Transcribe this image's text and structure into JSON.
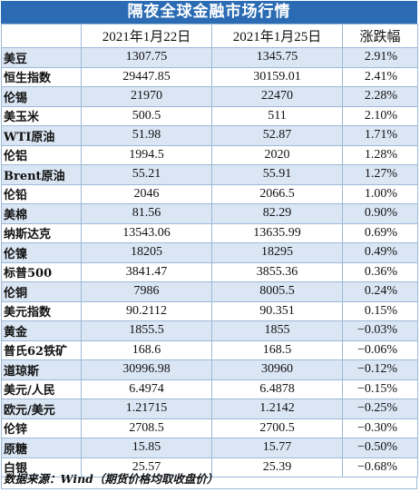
{
  "title": "隔夜全球金融市场行情",
  "headers": [
    "",
    "2021年1月22日",
    "2021年1月25日",
    "涨跌幅"
  ],
  "rows": [
    {
      "name": "美豆",
      "d1": "1307.75",
      "d2": "1345.75",
      "chg": "2.91%"
    },
    {
      "name": "恒生指数",
      "d1": "29447.85",
      "d2": "30159.01",
      "chg": "2.41%"
    },
    {
      "name": "伦锡",
      "d1": "21970",
      "d2": "22470",
      "chg": "2.28%"
    },
    {
      "name": "美玉米",
      "d1": "500.5",
      "d2": "511",
      "chg": "2.10%"
    },
    {
      "name": "WTI原油",
      "d1": "51.98",
      "d2": "52.87",
      "chg": "1.71%"
    },
    {
      "name": "伦铝",
      "d1": "1994.5",
      "d2": "2020",
      "chg": "1.28%"
    },
    {
      "name": "Brent原油",
      "d1": "55.21",
      "d2": "55.91",
      "chg": "1.27%"
    },
    {
      "name": "伦铅",
      "d1": "2046",
      "d2": "2066.5",
      "chg": "1.00%"
    },
    {
      "name": "美棉",
      "d1": "81.56",
      "d2": "82.29",
      "chg": "0.90%"
    },
    {
      "name": "纳斯达克",
      "d1": "13543.06",
      "d2": "13635.99",
      "chg": "0.69%"
    },
    {
      "name": "伦镍",
      "d1": "18205",
      "d2": "18295",
      "chg": "0.49%"
    },
    {
      "name": "标普500",
      "d1": "3841.47",
      "d2": "3855.36",
      "chg": "0.36%"
    },
    {
      "name": "伦铜",
      "d1": "7986",
      "d2": "8005.5",
      "chg": "0.24%"
    },
    {
      "name": "美元指数",
      "d1": "90.2112",
      "d2": "90.351",
      "chg": "0.15%"
    },
    {
      "name": "黄金",
      "d1": "1855.5",
      "d2": "1855",
      "chg": "−0.03%"
    },
    {
      "name": "普氏62铁矿",
      "d1": "168.6",
      "d2": "168.5",
      "chg": "−0.06%"
    },
    {
      "name": "道琼斯",
      "d1": "30996.98",
      "d2": "30960",
      "chg": "−0.12%"
    },
    {
      "name": "美元/人民",
      "d1": "6.4974",
      "d2": "6.4878",
      "chg": "−0.15%"
    },
    {
      "name": "欧元/美元",
      "d1": "1.21715",
      "d2": "1.2142",
      "chg": "−0.25%"
    },
    {
      "name": "伦锌",
      "d1": "2708.5",
      "d2": "2700.5",
      "chg": "−0.30%"
    },
    {
      "name": "原糖",
      "d1": "15.85",
      "d2": "15.77",
      "chg": "−0.50%"
    },
    {
      "name": "白银",
      "d1": "25.57",
      "d2": "25.39",
      "chg": "−0.68%"
    }
  ],
  "footer": "数据来源：Wind（期货价格均取收盘价）",
  "colors": {
    "title_bg": "#2a6bb3",
    "stripe": "#dbe6f4",
    "border": "#9cb9d8"
  }
}
